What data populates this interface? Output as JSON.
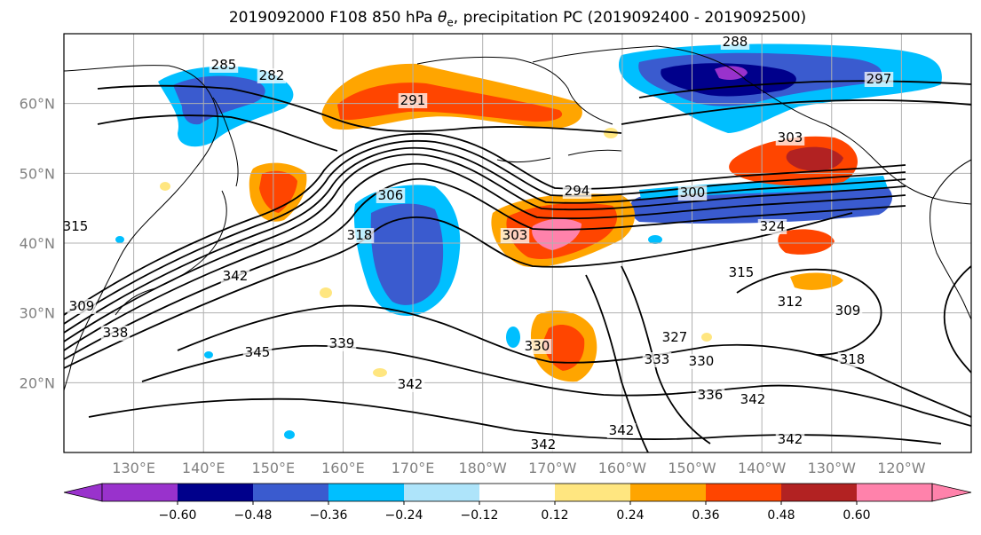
{
  "title": {
    "prefix": "2019092000 F108 850 hPa ",
    "theta": "θ",
    "sub": "e",
    "suffix": ", precipitation PC (2019092400 - 2019092500)"
  },
  "map": {
    "lat_ticks": [
      {
        "value": 60,
        "label": "60°N"
      },
      {
        "value": 50,
        "label": "50°N"
      },
      {
        "value": 40,
        "label": "40°N"
      },
      {
        "value": 30,
        "label": "30°N"
      },
      {
        "value": 20,
        "label": "20°N"
      }
    ],
    "lon_ticks": [
      {
        "value": 130,
        "label": "130°E"
      },
      {
        "value": 140,
        "label": "140°E"
      },
      {
        "value": 150,
        "label": "150°E"
      },
      {
        "value": 160,
        "label": "160°E"
      },
      {
        "value": 170,
        "label": "170°E"
      },
      {
        "value": 180,
        "label": "180°W"
      },
      {
        "value": 190,
        "label": "170°W"
      },
      {
        "value": 200,
        "label": "160°W"
      },
      {
        "value": 210,
        "label": "150°W"
      },
      {
        "value": 220,
        "label": "140°W"
      },
      {
        "value": 230,
        "label": "130°W"
      },
      {
        "value": 240,
        "label": "120°W"
      }
    ],
    "lon_range": [
      120,
      250
    ],
    "lat_range": [
      10,
      70
    ],
    "contour_labels": [
      "285",
      "282",
      "291",
      "288",
      "297",
      "303",
      "294",
      "300",
      "306",
      "318",
      "303",
      "315",
      "342",
      "309",
      "327",
      "312",
      "309",
      "318",
      "324",
      "330",
      "333",
      "330",
      "336",
      "342",
      "345",
      "339",
      "342",
      "342",
      "342",
      "342",
      "338",
      "315"
    ]
  },
  "colorbar": {
    "bins": [
      {
        "color": "#9932CC"
      },
      {
        "color": "#00008B"
      },
      {
        "color": "#3A5BCF"
      },
      {
        "color": "#00BFFF"
      },
      {
        "color": "#AEE4FA"
      },
      {
        "color": "#FFFFFF"
      },
      {
        "color": "#FFE680"
      },
      {
        "color": "#FFA500"
      },
      {
        "color": "#FF4500"
      },
      {
        "color": "#B22222"
      },
      {
        "color": "#FF82AB"
      }
    ],
    "tick_labels": [
      "−0.60",
      "−0.48",
      "−0.36",
      "−0.24",
      "−0.12",
      "0.12",
      "0.24",
      "0.36",
      "0.48",
      "0.60"
    ]
  }
}
